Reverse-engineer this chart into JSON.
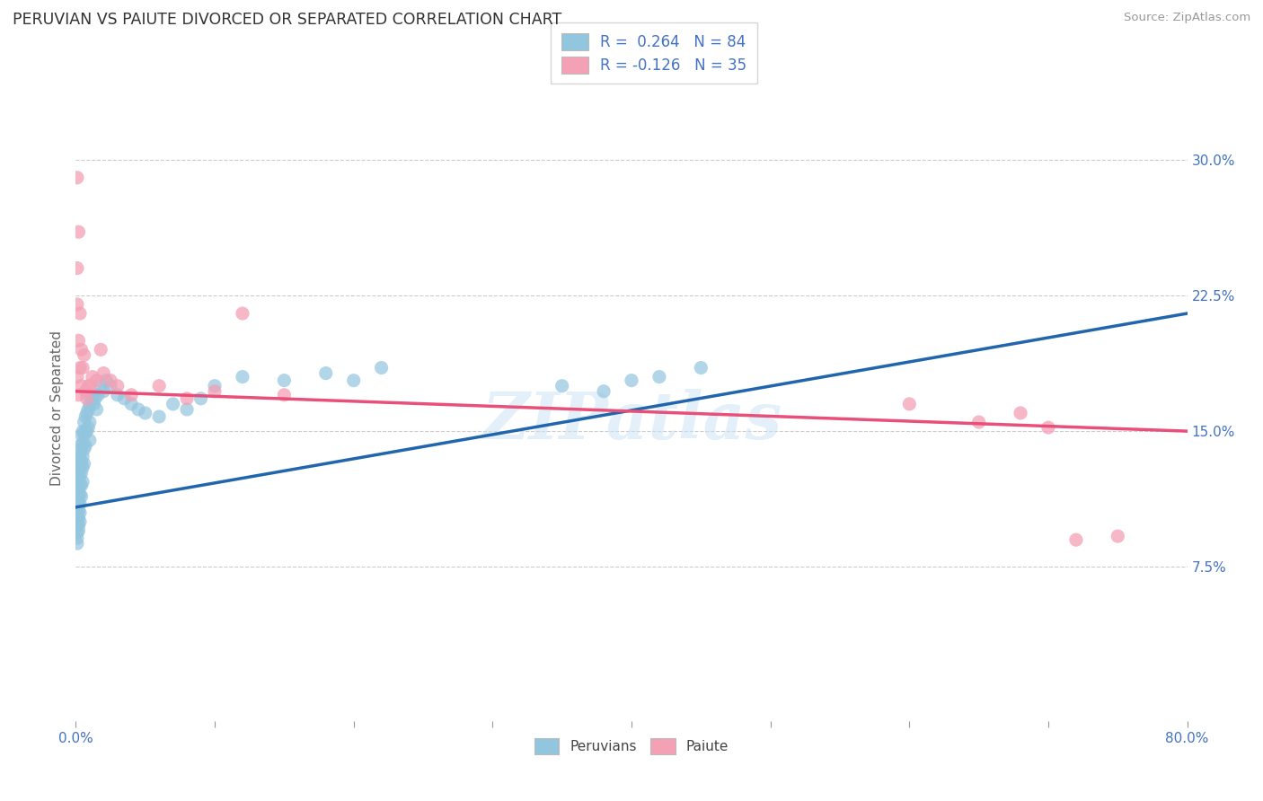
{
  "title": "PERUVIAN VS PAIUTE DIVORCED OR SEPARATED CORRELATION CHART",
  "source": "Source: ZipAtlas.com",
  "ylabel": "Divorced or Separated",
  "yticks": [
    0.075,
    0.15,
    0.225,
    0.3
  ],
  "ytick_labels": [
    "7.5%",
    "15.0%",
    "22.5%",
    "30.0%"
  ],
  "xlim": [
    0.0,
    0.8
  ],
  "ylim": [
    -0.01,
    0.335
  ],
  "blue_color": "#92c5de",
  "pink_color": "#f4a0b5",
  "blue_line_color": "#2166ac",
  "pink_line_color": "#e8507a",
  "watermark": "ZIPatlas",
  "peruvians_x": [
    0.001,
    0.001,
    0.001,
    0.001,
    0.001,
    0.001,
    0.001,
    0.001,
    0.001,
    0.001,
    0.002,
    0.002,
    0.002,
    0.002,
    0.002,
    0.002,
    0.002,
    0.002,
    0.002,
    0.002,
    0.003,
    0.003,
    0.003,
    0.003,
    0.003,
    0.003,
    0.003,
    0.003,
    0.003,
    0.004,
    0.004,
    0.004,
    0.004,
    0.004,
    0.004,
    0.005,
    0.005,
    0.005,
    0.005,
    0.005,
    0.006,
    0.006,
    0.006,
    0.006,
    0.007,
    0.007,
    0.007,
    0.008,
    0.008,
    0.009,
    0.009,
    0.01,
    0.01,
    0.01,
    0.011,
    0.012,
    0.013,
    0.014,
    0.015,
    0.016,
    0.018,
    0.02,
    0.022,
    0.025,
    0.03,
    0.035,
    0.04,
    0.045,
    0.05,
    0.06,
    0.07,
    0.08,
    0.09,
    0.1,
    0.12,
    0.15,
    0.18,
    0.2,
    0.22,
    0.35,
    0.38,
    0.4,
    0.42,
    0.45
  ],
  "peruvians_y": [
    0.125,
    0.118,
    0.112,
    0.108,
    0.105,
    0.102,
    0.098,
    0.094,
    0.091,
    0.088,
    0.135,
    0.128,
    0.122,
    0.118,
    0.114,
    0.11,
    0.106,
    0.102,
    0.098,
    0.095,
    0.142,
    0.136,
    0.13,
    0.125,
    0.12,
    0.115,
    0.11,
    0.105,
    0.1,
    0.148,
    0.14,
    0.133,
    0.127,
    0.12,
    0.114,
    0.15,
    0.143,
    0.136,
    0.13,
    0.122,
    0.155,
    0.148,
    0.14,
    0.132,
    0.158,
    0.15,
    0.142,
    0.16,
    0.15,
    0.162,
    0.152,
    0.165,
    0.155,
    0.145,
    0.168,
    0.17,
    0.165,
    0.168,
    0.162,
    0.17,
    0.175,
    0.172,
    0.178,
    0.175,
    0.17,
    0.168,
    0.165,
    0.162,
    0.16,
    0.158,
    0.165,
    0.162,
    0.168,
    0.175,
    0.18,
    0.178,
    0.182,
    0.178,
    0.185,
    0.175,
    0.172,
    0.178,
    0.18,
    0.185
  ],
  "paiute_x": [
    0.001,
    0.001,
    0.001,
    0.001,
    0.002,
    0.002,
    0.002,
    0.003,
    0.003,
    0.004,
    0.004,
    0.005,
    0.006,
    0.007,
    0.008,
    0.009,
    0.01,
    0.012,
    0.015,
    0.018,
    0.02,
    0.025,
    0.03,
    0.04,
    0.06,
    0.08,
    0.1,
    0.12,
    0.15,
    0.6,
    0.65,
    0.68,
    0.7,
    0.72,
    0.75
  ],
  "paiute_y": [
    0.29,
    0.24,
    0.22,
    0.18,
    0.26,
    0.2,
    0.17,
    0.215,
    0.185,
    0.195,
    0.175,
    0.185,
    0.192,
    0.172,
    0.168,
    0.175,
    0.175,
    0.18,
    0.178,
    0.195,
    0.182,
    0.178,
    0.175,
    0.17,
    0.175,
    0.168,
    0.172,
    0.215,
    0.17,
    0.165,
    0.155,
    0.16,
    0.152,
    0.09,
    0.092
  ],
  "blue_line_x0": 0.0,
  "blue_line_y0": 0.108,
  "blue_line_x1": 0.8,
  "blue_line_y1": 0.215,
  "pink_line_x0": 0.0,
  "pink_line_y0": 0.172,
  "pink_line_x1": 0.8,
  "pink_line_y1": 0.15
}
